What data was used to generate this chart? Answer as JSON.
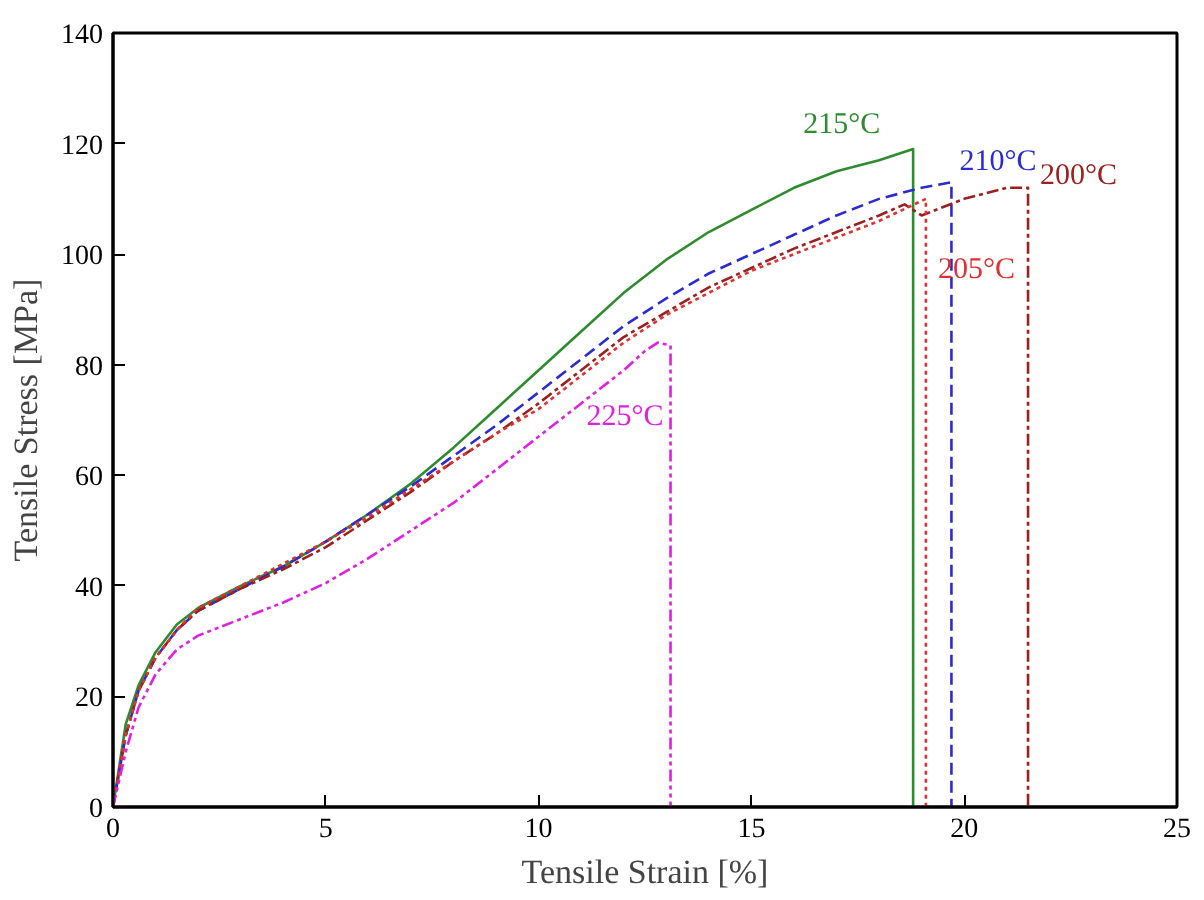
{
  "chart_data": {
    "type": "line",
    "xlabel": "Tensile Strain [%]",
    "ylabel": "Tensile Stress [MPa]",
    "xlim": [
      0,
      25
    ],
    "ylim": [
      0,
      140
    ],
    "xticks": [
      0,
      5,
      10,
      15,
      20,
      25
    ],
    "yticks": [
      0,
      20,
      40,
      60,
      80,
      100,
      120,
      140
    ],
    "grid": false,
    "series": [
      {
        "color": "#2e8b2e",
        "line_style": "solid",
        "x": [
          0,
          0.3,
          0.6,
          1,
          1.5,
          2,
          3,
          4,
          5,
          6,
          7,
          8,
          9,
          10,
          11,
          12,
          13,
          14,
          15,
          16,
          17,
          18,
          18.8,
          18.8
        ],
        "values": [
          0,
          15,
          22,
          28,
          33,
          36,
          40,
          43.5,
          48,
          53,
          58.5,
          65,
          72,
          79,
          86,
          93,
          99,
          104,
          108,
          112,
          115,
          117,
          119,
          0
        ]
      },
      {
        "color": "#2b2bd0",
        "line_style": "dashed",
        "x": [
          0,
          0.3,
          0.6,
          1,
          1.5,
          2,
          3,
          4,
          5,
          6,
          7,
          8,
          9,
          10,
          11,
          12,
          13,
          14,
          15,
          16,
          17,
          18,
          19,
          19.7,
          19.7
        ],
        "values": [
          0,
          13,
          21,
          27,
          32,
          35.5,
          39.5,
          43.5,
          48,
          53,
          58,
          63.5,
          69,
          75,
          81,
          87,
          92,
          96.5,
          100,
          103.5,
          107,
          110,
          112,
          113,
          0
        ]
      },
      {
        "color": "#9b2020",
        "line_style": "dashdot",
        "x": [
          0,
          0.3,
          0.6,
          1,
          1.5,
          2,
          3,
          4,
          5,
          6,
          7,
          8,
          9,
          10,
          11,
          12,
          13,
          14,
          15,
          16,
          17,
          18,
          18.6,
          19,
          20,
          21,
          21.5,
          21.5
        ],
        "values": [
          0,
          13,
          21,
          27,
          32,
          35.5,
          39.5,
          43,
          47,
          52,
          57,
          62.5,
          67.5,
          73,
          79,
          85,
          89.5,
          94,
          97.5,
          101,
          104,
          107,
          109,
          107,
          110,
          112,
          112,
          0
        ]
      },
      {
        "color": "#e03030",
        "line_style": "dotted",
        "x": [
          0,
          0.3,
          0.6,
          1,
          1.5,
          2,
          3,
          4,
          5,
          6,
          7,
          8,
          9,
          10,
          11,
          12,
          13,
          14,
          15,
          16,
          17,
          18,
          19.1,
          19.1
        ],
        "values": [
          0,
          13,
          21,
          27,
          32,
          36,
          40,
          44,
          48,
          52.5,
          57.5,
          62.5,
          67.5,
          72,
          78,
          84,
          89,
          93,
          97,
          100,
          103,
          106,
          110,
          0
        ]
      },
      {
        "color": "#e020e0",
        "line_style": "dashdotdot",
        "x": [
          0,
          0.3,
          0.6,
          1,
          1.5,
          2,
          3,
          4,
          5,
          6,
          7,
          8,
          9,
          10,
          11,
          12,
          12.5,
          12.8,
          13.1,
          13.1
        ],
        "values": [
          0,
          10,
          18,
          24,
          28.5,
          31,
          34,
          37,
          40.5,
          45,
          50,
          55,
          61,
          67,
          73,
          79,
          82.5,
          84,
          83.5,
          0
        ]
      }
    ],
    "annotations": [
      {
        "text": "215°C",
        "x": 18.8,
        "y": 119
      },
      {
        "text": "210°C",
        "x": 19.7,
        "y": 113
      },
      {
        "text": "200°C",
        "x": 21.5,
        "y": 112
      },
      {
        "text": "205°C",
        "x": 19.1,
        "y": 100
      },
      {
        "text": "225°C",
        "x": 13.1,
        "y": 77
      }
    ]
  }
}
